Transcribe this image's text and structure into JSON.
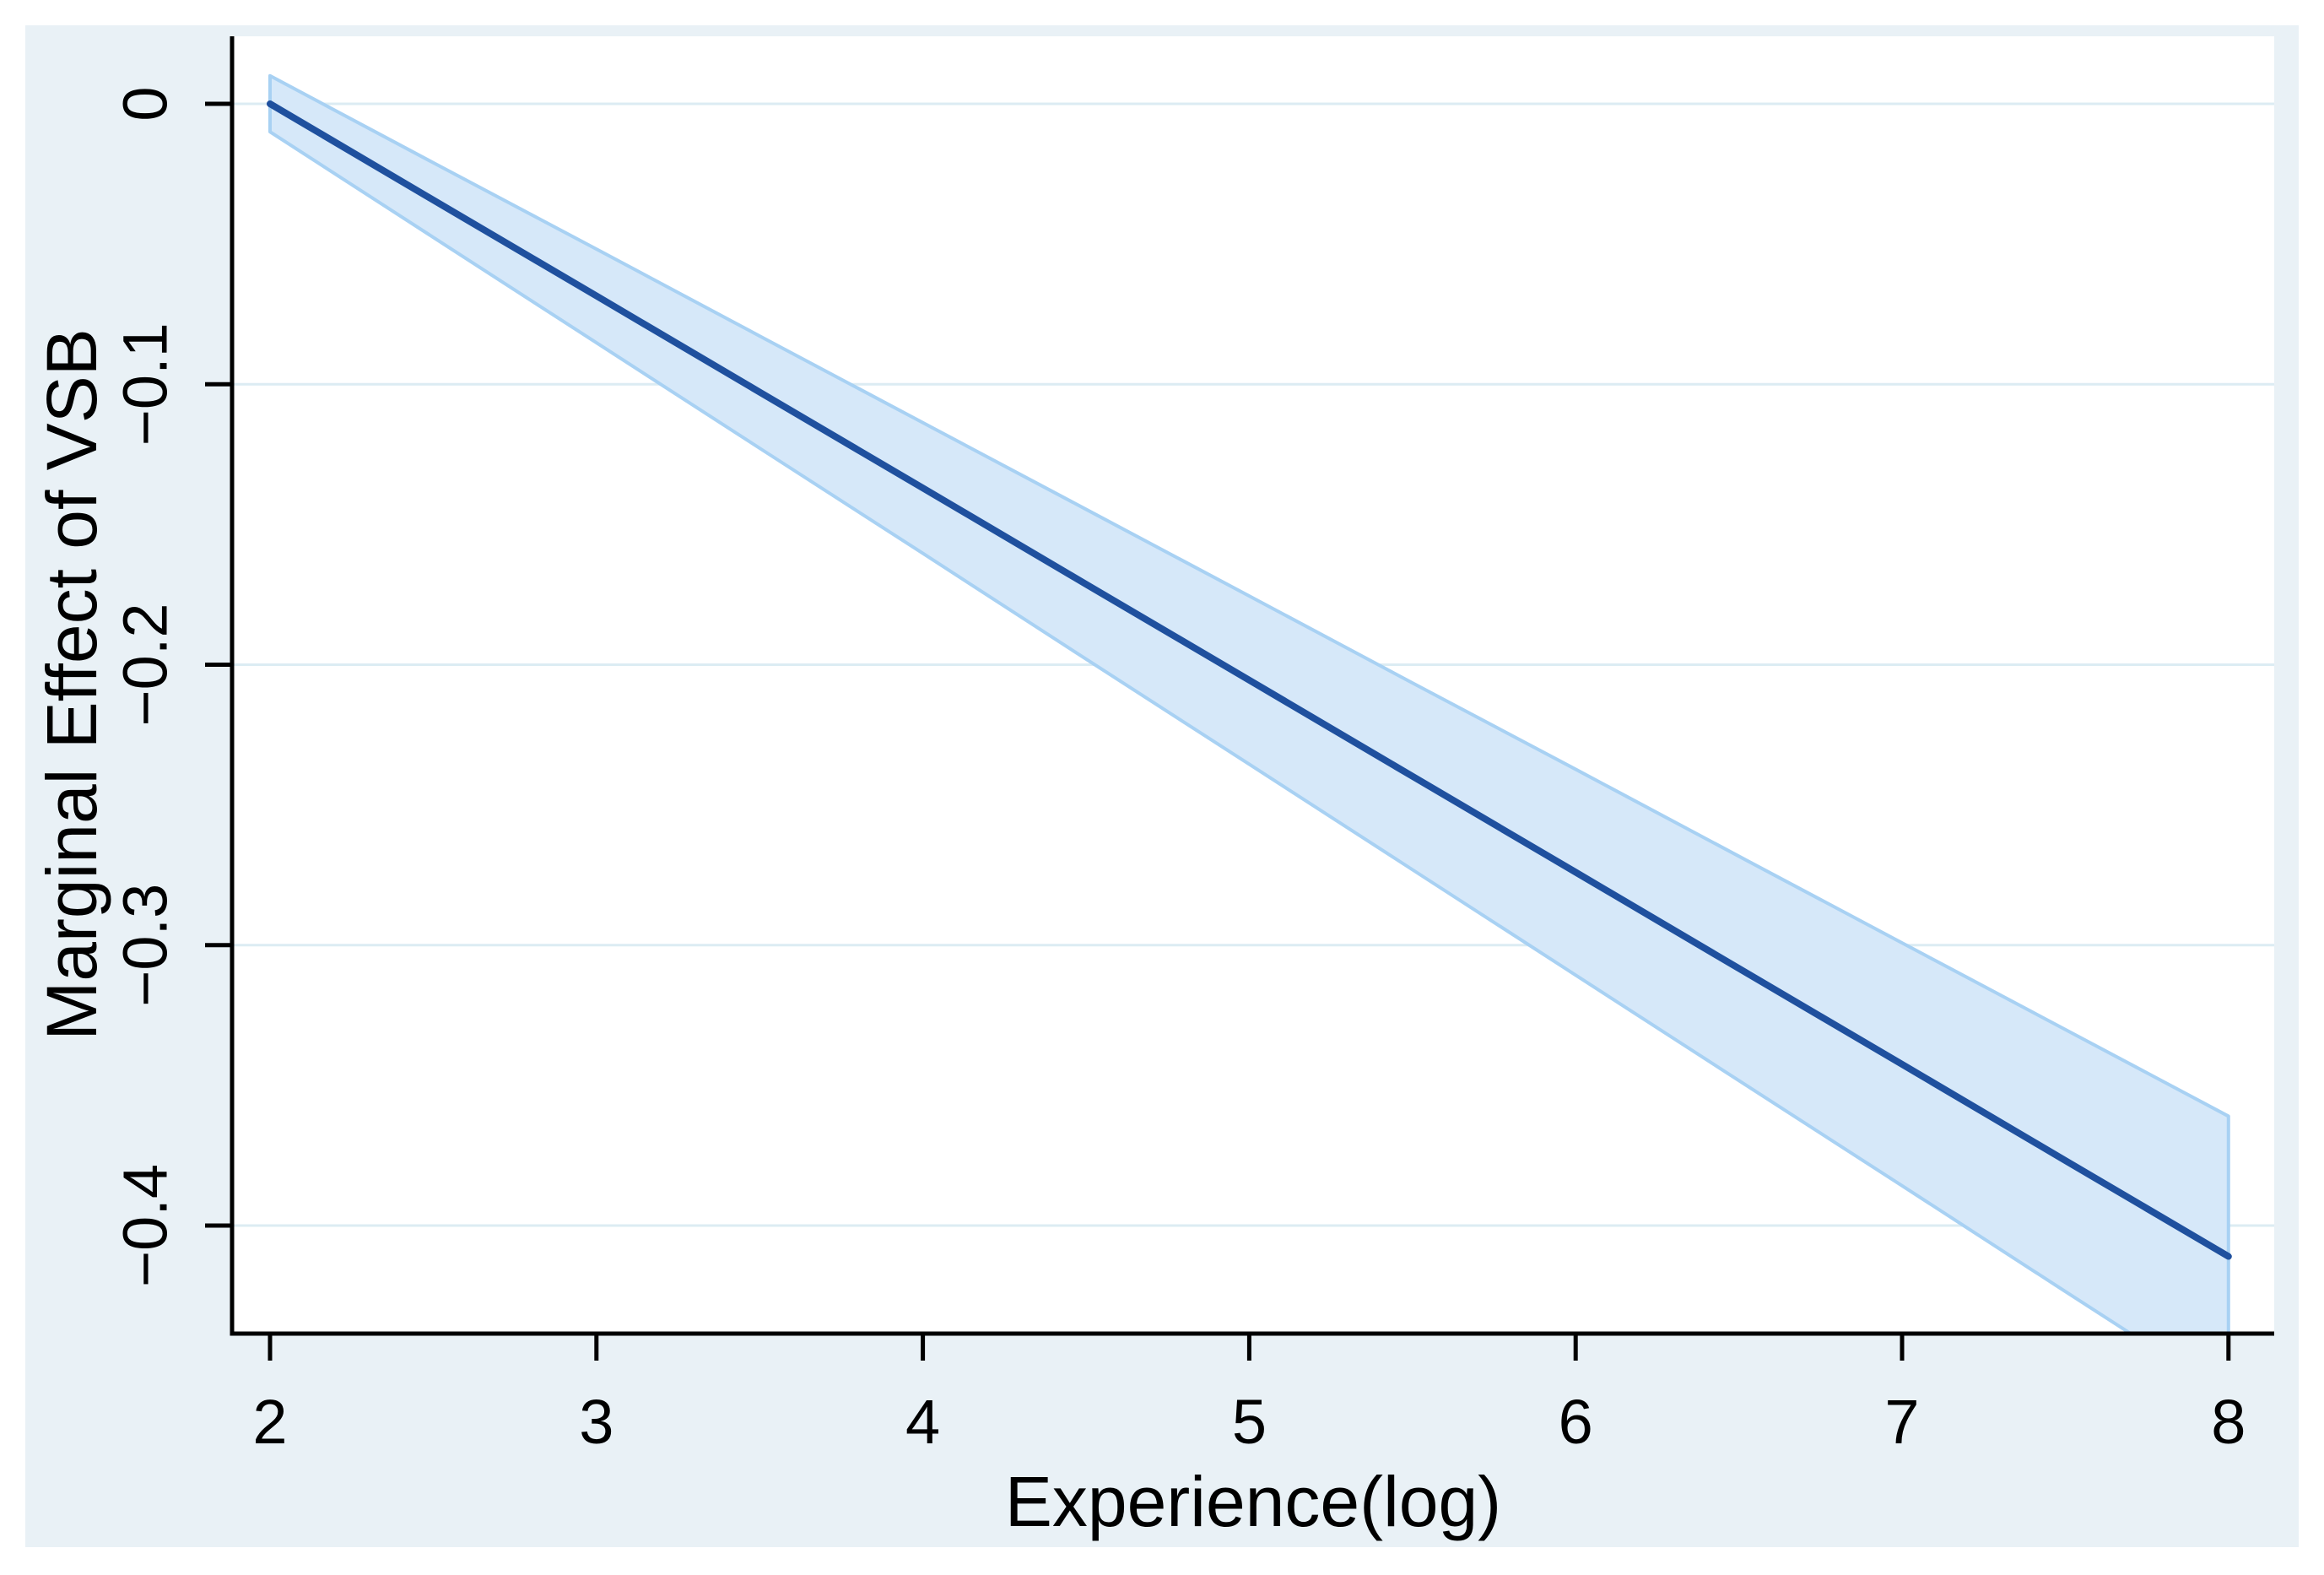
{
  "figure": {
    "kind": "stata-margins-plot",
    "x_axis_title": "Experience(log)",
    "y_axis_title": "Marginal Effect of VSB"
  },
  "chart_data": {
    "type": "line",
    "title": "",
    "xlabel": "Experience(log)",
    "ylabel": "Marginal Effect of VSB",
    "xlim": [
      1.88,
      8.14
    ],
    "ylim": [
      -0.4385,
      0.0241
    ],
    "grid": "horizontal",
    "legend_position": "none",
    "x_ticks": [
      2,
      3,
      4,
      5,
      6,
      7,
      8
    ],
    "x_tick_labels": [
      "2",
      "3",
      "4",
      "5",
      "6",
      "7",
      "8"
    ],
    "y_ticks": [
      0,
      -0.1,
      -0.2,
      -0.3,
      -0.4
    ],
    "y_tick_labels": [
      "0",
      "−0.1",
      "−0.2",
      "−0.3",
      "−0.4"
    ],
    "x": [
      2,
      2.5,
      3,
      3.5,
      4,
      4.5,
      5,
      5.5,
      6,
      6.5,
      7,
      7.5,
      8
    ],
    "series": [
      {
        "name": "marginal_effect",
        "style": "solid-line",
        "values": [
          0.0,
          -0.0343,
          -0.0685,
          -0.1028,
          -0.137,
          -0.1713,
          -0.2055,
          -0.2398,
          -0.274,
          -0.3083,
          -0.3425,
          -0.3768,
          -0.411
        ]
      },
      {
        "name": "ci_upper",
        "style": "band-edge",
        "values": [
          0.01,
          -0.021,
          -0.0518,
          -0.0828,
          -0.1137,
          -0.1446,
          -0.1755,
          -0.2065,
          -0.2373,
          -0.2683,
          -0.2992,
          -0.3301,
          -0.361
        ]
      },
      {
        "name": "ci_lower",
        "style": "band-edge",
        "values": [
          -0.01,
          -0.0476,
          -0.0852,
          -0.1228,
          -0.1603,
          -0.198,
          -0.2355,
          -0.2731,
          -0.3107,
          -0.3483,
          -0.3858,
          -0.4235,
          -0.461
        ]
      }
    ],
    "colors": {
      "canvas_background": "#e9f1f6",
      "plot_background": "#ffffff",
      "gridline": "#dcecf3",
      "band_fill": "#d6e8f9",
      "band_edge": "#a8d1f3",
      "line": "#1f509e",
      "axis": "#000000",
      "text": "#000000"
    }
  }
}
